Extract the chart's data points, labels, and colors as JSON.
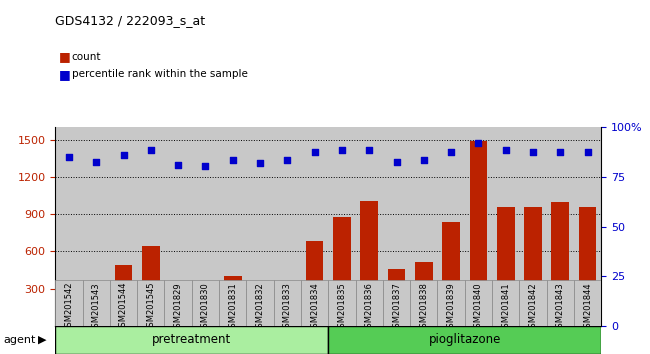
{
  "title": "GDS4132 / 222093_s_at",
  "categories": [
    "GSM201542",
    "GSM201543",
    "GSM201544",
    "GSM201545",
    "GSM201829",
    "GSM201830",
    "GSM201831",
    "GSM201832",
    "GSM201833",
    "GSM201834",
    "GSM201835",
    "GSM201836",
    "GSM201837",
    "GSM201838",
    "GSM201839",
    "GSM201840",
    "GSM201841",
    "GSM201842",
    "GSM201843",
    "GSM201844"
  ],
  "counts": [
    360,
    330,
    490,
    640,
    350,
    310,
    400,
    340,
    300,
    680,
    880,
    1010,
    460,
    510,
    840,
    1490,
    960,
    960,
    1000,
    960
  ],
  "percentile_ranks_left": [
    1360,
    1325,
    1380,
    1420,
    1300,
    1290,
    1340,
    1310,
    1340,
    1400,
    1420,
    1420,
    1320,
    1340,
    1400,
    1475,
    1420,
    1400,
    1400,
    1400
  ],
  "bar_color": "#bb2200",
  "dot_color": "#0000cc",
  "pre_n": 10,
  "pio_n": 10,
  "pretreatment_color": "#aaeea0",
  "pioglitazone_color": "#55cc55",
  "agent_label": "agent",
  "pretreatment_label": "pretreatment",
  "pioglitazone_label": "pioglitazone",
  "ylim_left": [
    0,
    1600
  ],
  "yticks_left": [
    300,
    600,
    900,
    1200,
    1500
  ],
  "ylim_right": [
    0,
    100
  ],
  "yticks_right": [
    0,
    25,
    50,
    75,
    100
  ],
  "ytick_labels_right": [
    "0",
    "25",
    "50",
    "75",
    "100%"
  ],
  "background_color": "#c8c8c8",
  "legend_count": "count",
  "legend_percentile": "percentile rank within the sample"
}
